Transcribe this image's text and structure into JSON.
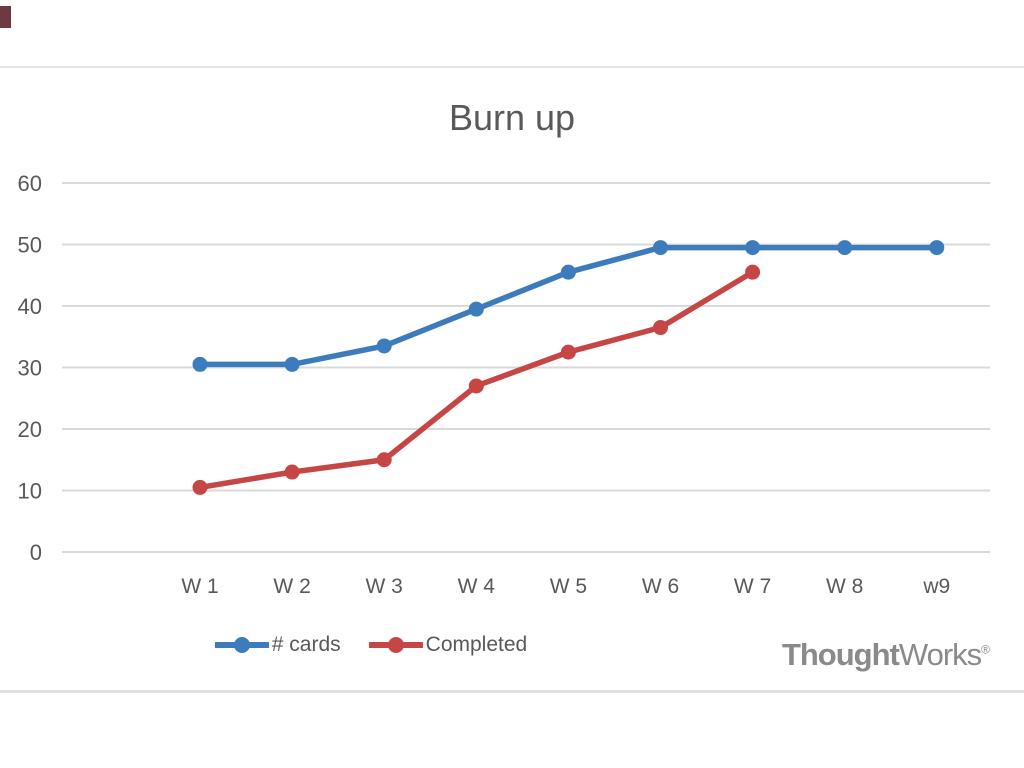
{
  "chart_data": {
    "type": "line",
    "title": "Burn up",
    "categories": [
      "W 1",
      "W 2",
      "W 3",
      "W 4",
      "W 5",
      "W 6",
      "W 7",
      "W 8",
      "w9"
    ],
    "series": [
      {
        "name": "# cards",
        "color": "#3C7CBC",
        "values": [
          30.5,
          30.5,
          33.5,
          39.5,
          45.5,
          49.5,
          49.5,
          49.5,
          49.5
        ]
      },
      {
        "name": "Completed",
        "color": "#C64646",
        "values": [
          10.5,
          13,
          15,
          27,
          32.5,
          36.5,
          45.5,
          null,
          null
        ]
      }
    ],
    "xlabel": "",
    "ylabel": "",
    "ylim": [
      0,
      60
    ],
    "yticks": [
      0,
      10,
      20,
      30,
      40,
      50,
      60
    ],
    "grid": "horizontal",
    "legend_position": "bottom"
  },
  "branding": {
    "logo_bold": "Thought",
    "logo_regular": "Works",
    "registered": "®"
  },
  "colors": {
    "axis_text": "#595959",
    "gridline": "#d9d9d9",
    "title_text": "#595959",
    "divider": "#e2e2e2",
    "corner_mark": "#6e3940",
    "logo_gray": "#8a8a8d"
  }
}
